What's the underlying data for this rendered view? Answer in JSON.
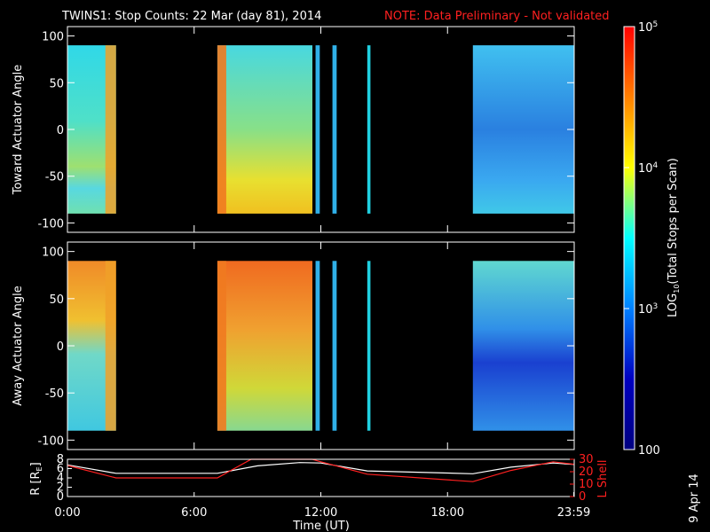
{
  "header": {
    "title": "TWINS1: Stop Counts: 22 Mar (day  81), 2014",
    "note": "NOTE: Data Preliminary - Not validated"
  },
  "side_date": "9 Apr 14",
  "chart_data": [
    {
      "type": "heatmap",
      "ylabel": "Toward Actuator Angle",
      "ylim": [
        -110,
        110
      ],
      "yticks": [
        "100",
        "50",
        "0",
        "-50",
        "-100"
      ],
      "ytick_values": [
        100,
        50,
        0,
        -50,
        -100
      ],
      "data_yrange": [
        -90,
        90
      ],
      "data_intervals_hours": [
        [
          0,
          2.3
        ],
        [
          7.1,
          11.6
        ],
        [
          11.75,
          11.95
        ],
        [
          12.55,
          12.75
        ],
        [
          14.2,
          14.35
        ],
        [
          19.2,
          24
        ]
      ],
      "colors": {
        "base": "#2fd6d6",
        "low": "#e8e830",
        "mid": "#3fb0f0",
        "late": "#1a6fd8"
      }
    },
    {
      "type": "heatmap",
      "ylabel": "Away Actuator Angle",
      "ylim": [
        -110,
        110
      ],
      "yticks": [
        "100",
        "50",
        "0",
        "-50",
        "-100"
      ],
      "ytick_values": [
        100,
        50,
        0,
        -50,
        -100
      ],
      "data_yrange": [
        -90,
        90
      ],
      "data_intervals_hours": [
        [
          0,
          2.3
        ],
        [
          7.1,
          11.6
        ],
        [
          11.75,
          11.95
        ],
        [
          12.55,
          12.75
        ],
        [
          14.2,
          14.35
        ],
        [
          19.2,
          24
        ]
      ],
      "colors": {
        "base": "#f0a030",
        "mid": "#40c0c0",
        "late": "#1540d0"
      }
    },
    {
      "type": "line",
      "ylabel": "R [R",
      "ylabel_sub": "E",
      "ylabel_end": "]",
      "ylim": [
        0,
        8
      ],
      "yticks": [
        "8",
        "6",
        "4",
        "2",
        "0"
      ],
      "ytick_values": [
        8,
        6,
        4,
        2,
        0
      ],
      "y2label": "L Shell",
      "y2lim": [
        0,
        30
      ],
      "y2ticks": [
        "30",
        "20",
        "10",
        "0"
      ],
      "y2tick_values": [
        30,
        20,
        10,
        0
      ],
      "xlabel": "Time (UT)",
      "xlim": [
        0,
        24
      ],
      "xticks": [
        "0:00",
        "6:00",
        "12:00",
        "18:00",
        "23:59"
      ],
      "xtick_values": [
        0,
        6,
        12,
        18,
        23.98
      ],
      "series": [
        {
          "color": "#ffffff",
          "x": [
            0,
            2.3,
            7.1,
            9,
            11,
            12,
            14.2,
            19.2,
            21,
            23,
            24
          ],
          "y": [
            6.8,
            5.0,
            5.0,
            6.6,
            7.3,
            7.2,
            5.5,
            4.9,
            6.3,
            7.2,
            6.9
          ]
        },
        {
          "color": "#ff2020",
          "axis": "y2",
          "x": [
            0,
            2.3,
            7.1,
            8.7,
            11.6,
            12,
            14.2,
            19.2,
            21,
            23,
            24
          ],
          "y": [
            25,
            15,
            15,
            31,
            31,
            28,
            18,
            12,
            21,
            28,
            26
          ]
        }
      ]
    }
  ],
  "colorbar": {
    "label": "LOG",
    "label_sub": "10",
    "label_end": "(Total Stops per Scan)",
    "ticks": [
      {
        "text": "10",
        "sup": "5",
        "value": 100000
      },
      {
        "text": "10",
        "sup": "4",
        "value": 10000
      },
      {
        "text": "10",
        "sup": "3",
        "value": 1000
      },
      {
        "text": "100",
        "sup": "",
        "value": 100
      }
    ],
    "range": [
      100,
      100000
    ],
    "scale": "log",
    "colors": [
      "#ff0000",
      "#ff8000",
      "#ffff00",
      "#00ffff",
      "#0080ff",
      "#0000c0",
      "#000080"
    ]
  }
}
